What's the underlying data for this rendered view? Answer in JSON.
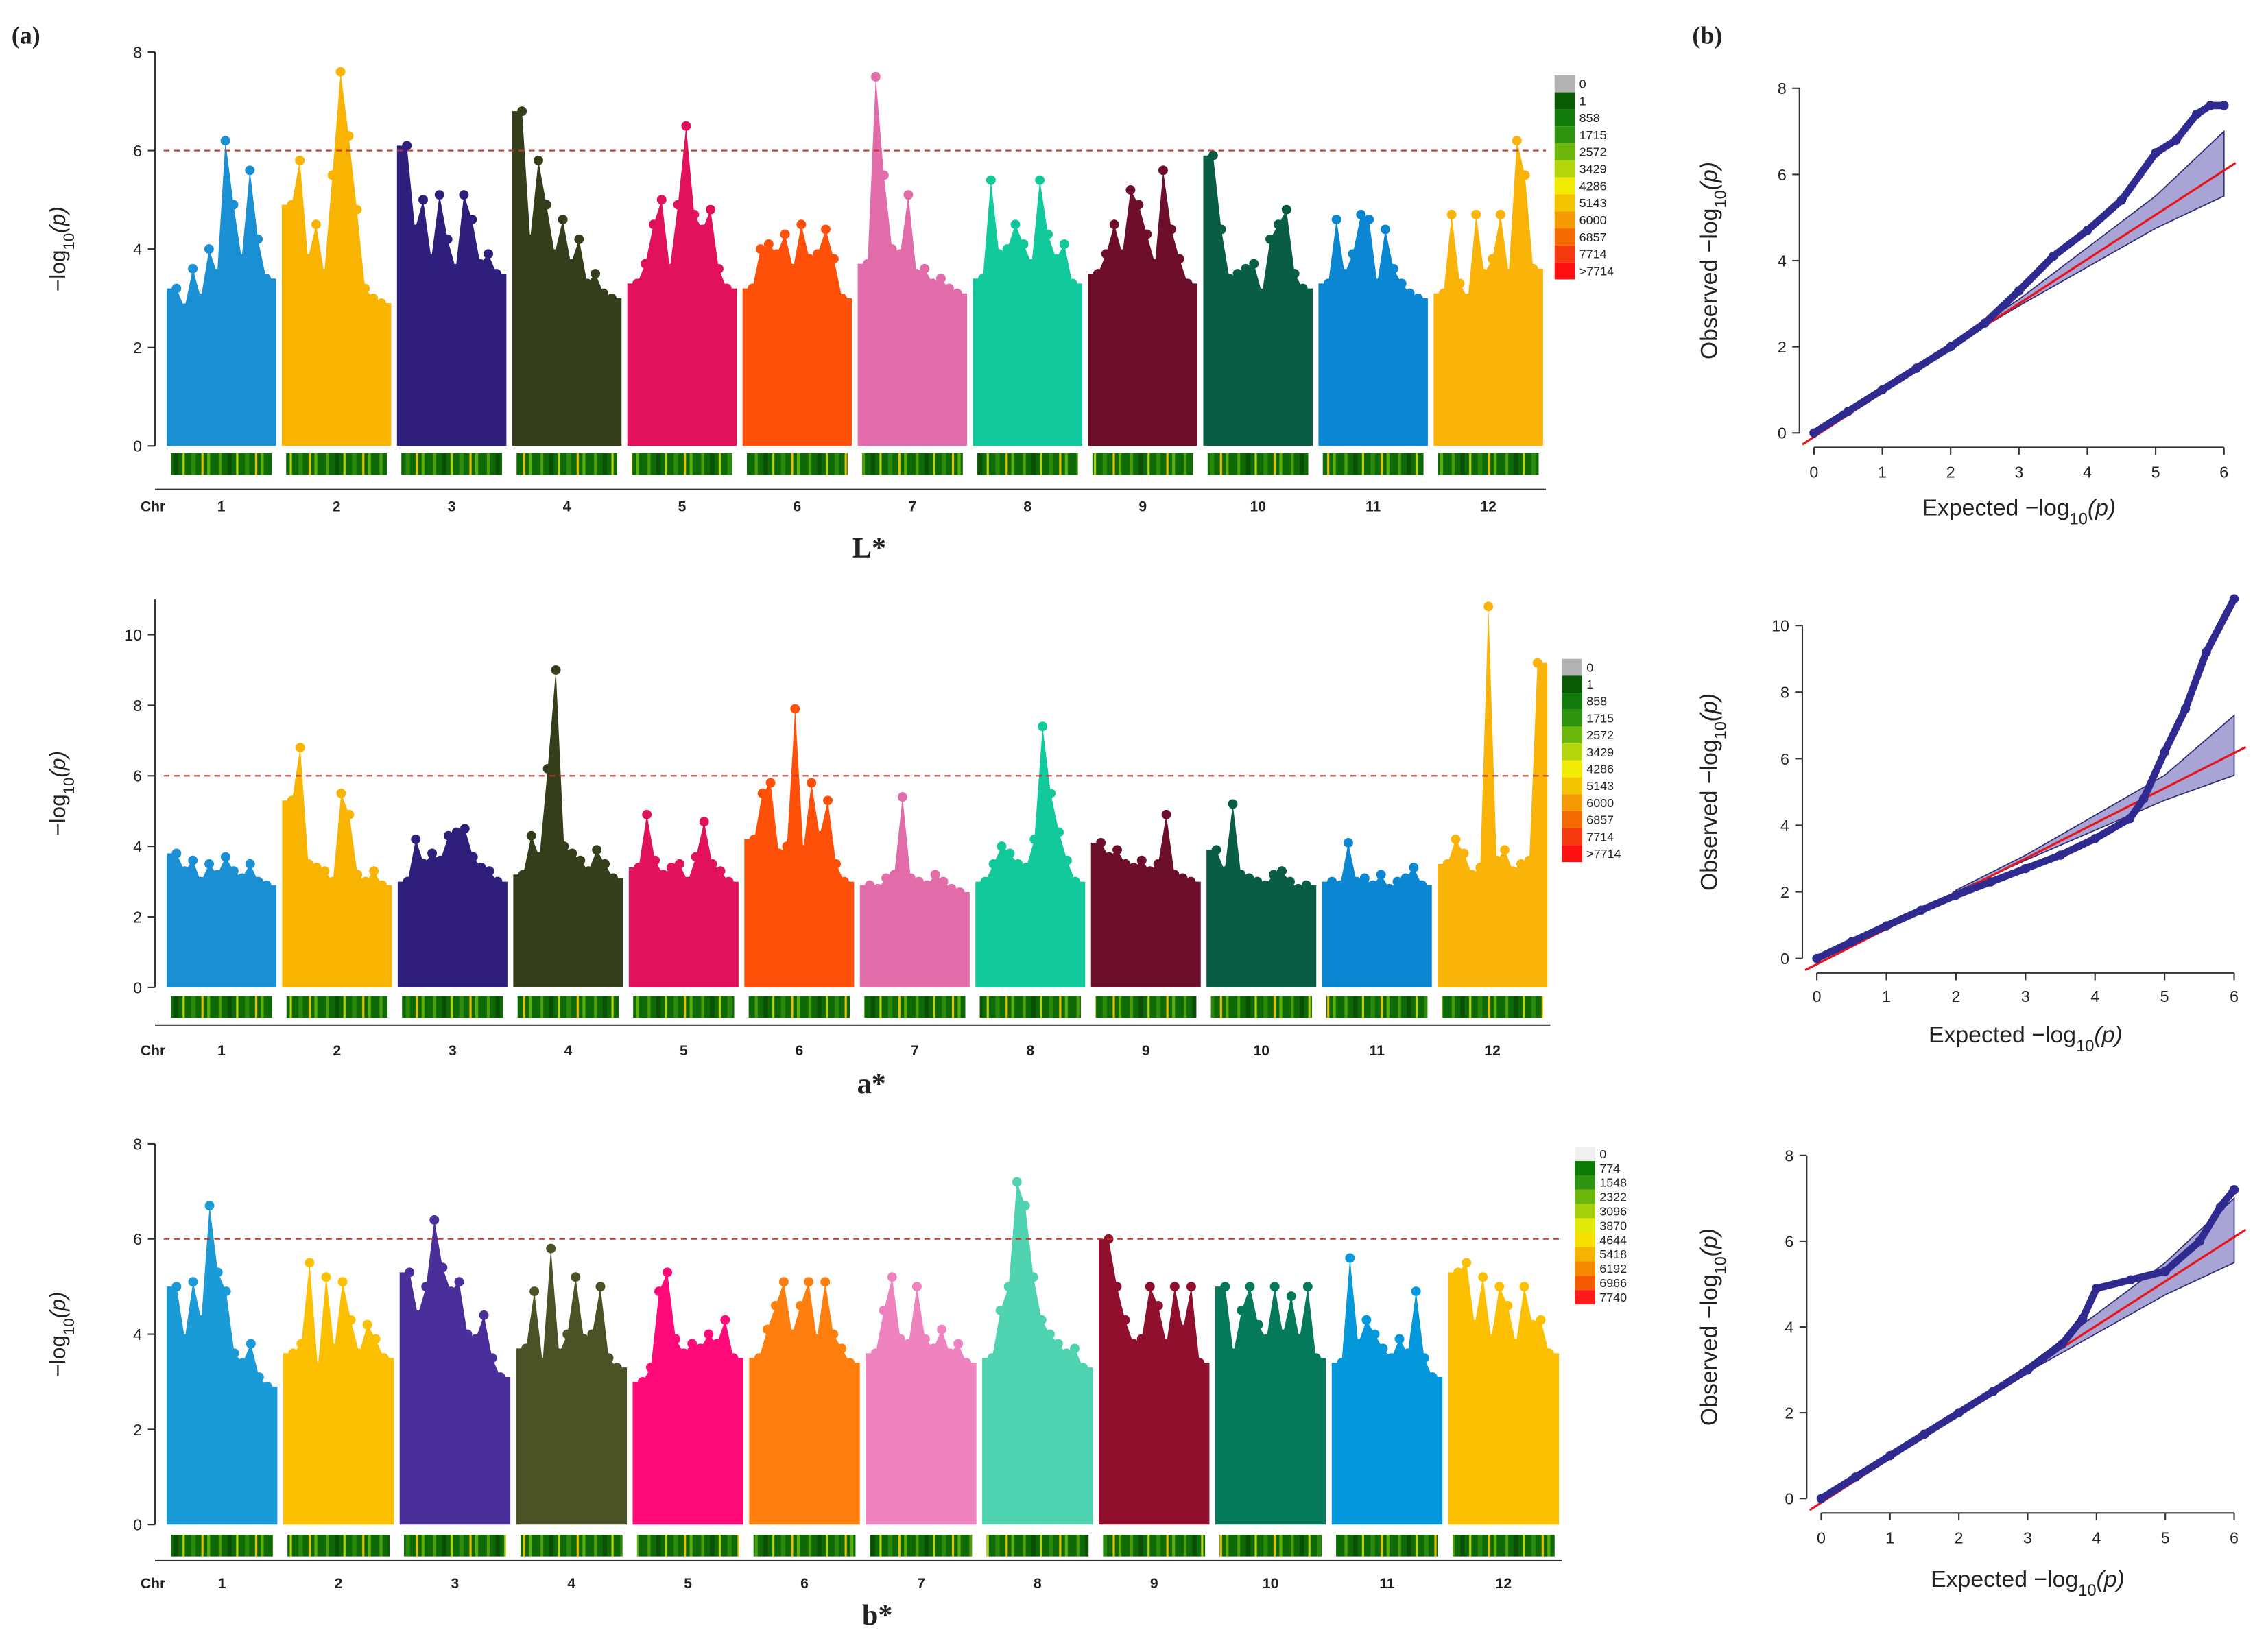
{
  "panel_labels": [
    "(a)",
    "(b)"
  ],
  "chart_data": [
    {
      "type": "manhattan",
      "title": "L*",
      "xlabel": "Chr",
      "ylabel": [
        "−log",
        "10",
        "(p)"
      ],
      "categories": [
        "1",
        "2",
        "3",
        "4",
        "5",
        "6",
        "7",
        "8",
        "9",
        "10",
        "11",
        "12"
      ],
      "ylim": [
        0,
        8
      ],
      "yticks": [
        0,
        2,
        4,
        6,
        8
      ],
      "threshold": 6,
      "threshold_color": "#c0392b",
      "series": [
        {
          "color": "#1a8fd4",
          "values": [
            3.2,
            2.8,
            3.6,
            3.0,
            4.0,
            3.5,
            6.2,
            4.9,
            3.8,
            5.6,
            4.2,
            3.4
          ]
        },
        {
          "color": "#f8b400",
          "values": [
            4.9,
            5.8,
            3.8,
            4.5,
            3.5,
            5.5,
            7.6,
            6.3,
            4.8,
            3.2,
            3.0,
            2.9
          ]
        },
        {
          "color": "#2f1e7c",
          "values": [
            6.1,
            4.4,
            5.0,
            3.8,
            5.1,
            4.2,
            3.6,
            5.1,
            4.6,
            3.7,
            3.9,
            3.5
          ]
        },
        {
          "color": "#343e1b",
          "values": [
            6.8,
            4.2,
            5.8,
            4.9,
            3.9,
            4.6,
            3.7,
            4.2,
            3.3,
            3.5,
            3.1,
            3.0
          ]
        },
        {
          "color": "#e2115b",
          "values": [
            3.3,
            3.7,
            4.5,
            5.0,
            3.6,
            4.9,
            6.5,
            4.7,
            4.4,
            4.8,
            3.6,
            3.2
          ]
        },
        {
          "color": "#fe5008",
          "values": [
            3.2,
            4.0,
            4.1,
            3.9,
            4.3,
            3.6,
            4.5,
            3.8,
            3.9,
            4.4,
            3.8,
            3.0
          ]
        },
        {
          "color": "#e26ba9",
          "values": [
            3.7,
            7.5,
            5.5,
            4.0,
            3.9,
            5.1,
            3.5,
            3.6,
            3.3,
            3.4,
            3.2,
            3.1
          ]
        },
        {
          "color": "#11c99b",
          "values": [
            3.4,
            5.4,
            3.9,
            4.0,
            4.5,
            4.1,
            3.7,
            5.4,
            4.3,
            3.8,
            4.1,
            3.3
          ]
        },
        {
          "color": "#6d0f2b",
          "values": [
            3.5,
            3.9,
            4.5,
            3.9,
            5.2,
            4.9,
            4.3,
            3.7,
            5.6,
            4.4,
            3.8,
            3.3
          ]
        },
        {
          "color": "#0a5d45",
          "values": [
            5.9,
            4.4,
            3.4,
            3.5,
            3.6,
            3.7,
            3.1,
            4.2,
            4.5,
            4.8,
            3.5,
            3.2
          ]
        },
        {
          "color": "#0b86d2",
          "values": [
            3.3,
            4.6,
            3.5,
            3.9,
            4.7,
            4.6,
            3.3,
            4.4,
            3.6,
            3.3,
            3.1,
            3.0
          ]
        },
        {
          "color": "#fab309",
          "values": [
            3.1,
            4.7,
            3.3,
            3.0,
            4.7,
            3.5,
            3.8,
            4.7,
            3.5,
            6.2,
            5.5,
            3.6
          ]
        }
      ],
      "legend": [
        {
          "label": "0",
          "color": "#b3b3b3"
        },
        {
          "label": "1",
          "color": "#0a5a05"
        },
        {
          "label": "858",
          "color": "#137a0c"
        },
        {
          "label": "1715",
          "color": "#2e9410"
        },
        {
          "label": "2572",
          "color": "#6db80c"
        },
        {
          "label": "3429",
          "color": "#b5d60a"
        },
        {
          "label": "4286",
          "color": "#f2ec05"
        },
        {
          "label": "5143",
          "color": "#f5c400"
        },
        {
          "label": "6000",
          "color": "#f59a00"
        },
        {
          "label": "6857",
          "color": "#f56a00"
        },
        {
          "label": "7714",
          "color": "#f53a10"
        },
        {
          "label": ">7714",
          "color": "#ff1010"
        }
      ]
    },
    {
      "type": "manhattan",
      "title": "a*",
      "xlabel": "Chr",
      "ylabel": [
        "−log",
        "10",
        "(p)"
      ],
      "categories": [
        "1",
        "2",
        "3",
        "4",
        "5",
        "6",
        "7",
        "8",
        "9",
        "10",
        "11",
        "12"
      ],
      "ylim": [
        0,
        11
      ],
      "yticks": [
        0,
        2,
        4,
        6,
        8,
        10
      ],
      "threshold": 6,
      "threshold_color": "#c0392b",
      "series": [
        {
          "color": "#1a8fd4",
          "values": [
            3.8,
            3.3,
            3.6,
            3.0,
            3.5,
            3.2,
            3.7,
            3.3,
            3.1,
            3.5,
            3.0,
            2.9
          ]
        },
        {
          "color": "#f8b400",
          "values": [
            5.3,
            6.8,
            3.5,
            3.4,
            3.3,
            3.0,
            5.5,
            4.9,
            3.2,
            3.0,
            3.3,
            2.9
          ]
        },
        {
          "color": "#2f1e7c",
          "values": [
            3.0,
            4.2,
            3.5,
            3.8,
            3.6,
            4.3,
            4.4,
            4.5,
            3.7,
            3.4,
            3.3,
            3.0
          ]
        },
        {
          "color": "#343e1b",
          "values": [
            3.2,
            4.3,
            3.7,
            6.2,
            9.0,
            4.0,
            3.8,
            3.6,
            3.3,
            3.9,
            3.5,
            3.1
          ]
        },
        {
          "color": "#e2115b",
          "values": [
            3.4,
            4.9,
            3.6,
            3.2,
            3.4,
            3.5,
            3.0,
            3.7,
            4.7,
            3.5,
            3.3,
            3.0
          ]
        },
        {
          "color": "#fe5008",
          "values": [
            4.2,
            5.5,
            5.8,
            3.8,
            4.0,
            7.9,
            3.9,
            5.8,
            4.3,
            5.3,
            3.5,
            3.0
          ]
        },
        {
          "color": "#e26ba9",
          "values": [
            2.9,
            2.8,
            3.1,
            3.2,
            5.4,
            3.1,
            3.0,
            2.9,
            3.2,
            3.0,
            2.8,
            2.7
          ]
        },
        {
          "color": "#11c99b",
          "values": [
            3.0,
            3.5,
            4.0,
            3.8,
            3.5,
            3.4,
            4.2,
            7.4,
            5.5,
            4.4,
            3.6,
            3.0
          ]
        },
        {
          "color": "#6d0f2b",
          "values": [
            4.1,
            3.7,
            3.9,
            3.5,
            3.4,
            3.6,
            3.3,
            3.5,
            4.9,
            3.2,
            3.1,
            3.0
          ]
        },
        {
          "color": "#0a5d45",
          "values": [
            3.9,
            3.3,
            5.2,
            3.2,
            3.1,
            3.0,
            2.9,
            3.2,
            3.3,
            3.0,
            2.8,
            2.9
          ]
        },
        {
          "color": "#0b86d2",
          "values": [
            3.0,
            2.9,
            4.1,
            3.0,
            3.1,
            2.9,
            3.2,
            2.8,
            3.0,
            3.1,
            3.4,
            2.9
          ]
        },
        {
          "color": "#fab309",
          "values": [
            3.5,
            4.2,
            3.8,
            3.2,
            3.4,
            10.8,
            3.6,
            3.9,
            3.3,
            3.5,
            3.6,
            9.2
          ]
        }
      ],
      "legend": [
        {
          "label": "0",
          "color": "#b3b3b3"
        },
        {
          "label": "1",
          "color": "#0a5a05"
        },
        {
          "label": "858",
          "color": "#137a0c"
        },
        {
          "label": "1715",
          "color": "#2e9410"
        },
        {
          "label": "2572",
          "color": "#6db80c"
        },
        {
          "label": "3429",
          "color": "#b5d60a"
        },
        {
          "label": "4286",
          "color": "#f2ec05"
        },
        {
          "label": "5143",
          "color": "#f5c400"
        },
        {
          "label": "6000",
          "color": "#f59a00"
        },
        {
          "label": "6857",
          "color": "#f56a00"
        },
        {
          "label": "7714",
          "color": "#f53a10"
        },
        {
          "label": ">7714",
          "color": "#ff1010"
        }
      ]
    },
    {
      "type": "manhattan",
      "title": "b*",
      "xlabel": "Chr",
      "ylabel": [
        "−log",
        "10",
        "(p)"
      ],
      "categories": [
        "1",
        "2",
        "3",
        "4",
        "5",
        "6",
        "7",
        "8",
        "9",
        "10",
        "11",
        "12"
      ],
      "ylim": [
        0,
        8
      ],
      "yticks": [
        0,
        2,
        4,
        6,
        8
      ],
      "threshold": 6,
      "threshold_color": "#c0392b",
      "series": [
        {
          "color": "#1a9ad6",
          "values": [
            5.0,
            3.9,
            5.1,
            4.3,
            6.7,
            5.3,
            4.9,
            3.6,
            3.4,
            3.8,
            3.1,
            2.9
          ]
        },
        {
          "color": "#fcc000",
          "values": [
            3.6,
            3.8,
            5.5,
            3.3,
            5.2,
            3.7,
            5.1,
            4.3,
            3.6,
            4.2,
            3.9,
            3.5
          ]
        },
        {
          "color": "#4a2e99",
          "values": [
            5.3,
            4.4,
            5.0,
            6.4,
            5.4,
            4.9,
            5.1,
            4.0,
            3.9,
            4.4,
            3.5,
            3.1
          ]
        },
        {
          "color": "#4a5226",
          "values": [
            3.7,
            4.9,
            3.4,
            5.8,
            3.6,
            4.0,
            5.2,
            3.9,
            4.0,
            5.0,
            3.5,
            3.3
          ]
        },
        {
          "color": "#ff0a78",
          "values": [
            3.0,
            3.3,
            4.9,
            5.3,
            3.9,
            3.6,
            3.8,
            3.7,
            4.0,
            3.8,
            4.3,
            3.5
          ]
        },
        {
          "color": "#ff7f0e",
          "values": [
            3.5,
            4.1,
            4.6,
            5.1,
            4.0,
            4.6,
            5.1,
            3.9,
            5.1,
            4.0,
            3.7,
            3.4
          ]
        },
        {
          "color": "#ef83bf",
          "values": [
            3.6,
            4.5,
            5.2,
            3.9,
            3.8,
            5.0,
            3.9,
            3.7,
            4.1,
            3.6,
            3.8,
            3.4
          ]
        },
        {
          "color": "#4fd3b0",
          "values": [
            3.5,
            4.5,
            5.0,
            7.2,
            6.7,
            5.2,
            4.3,
            4.0,
            3.8,
            3.6,
            3.7,
            3.3
          ]
        },
        {
          "color": "#8f0f2d",
          "values": [
            6.0,
            5.0,
            4.3,
            3.8,
            3.9,
            5.0,
            4.6,
            3.8,
            5.0,
            4.1,
            5.0,
            3.4
          ]
        },
        {
          "color": "#047a5a",
          "values": [
            5.0,
            3.6,
            4.5,
            5.0,
            4.2,
            3.9,
            5.0,
            4.0,
            4.8,
            3.9,
            5.0,
            3.5
          ]
        },
        {
          "color": "#0398dc",
          "values": [
            3.4,
            5.6,
            3.8,
            4.3,
            4.0,
            3.7,
            3.5,
            3.9,
            3.6,
            4.9,
            3.5,
            3.1
          ]
        },
        {
          "color": "#fcc000",
          "values": [
            5.3,
            5.5,
            4.2,
            5.2,
            3.9,
            5.0,
            4.6,
            3.8,
            5.0,
            4.2,
            4.3,
            3.6
          ]
        }
      ],
      "legend": [
        {
          "label": "0",
          "color": "#f0f0f0"
        },
        {
          "label": "774",
          "color": "#0a7a05"
        },
        {
          "label": "1548",
          "color": "#2e9410"
        },
        {
          "label": "2322",
          "color": "#6db80c"
        },
        {
          "label": "3096",
          "color": "#a6d00a"
        },
        {
          "label": "3870",
          "color": "#e0e805"
        },
        {
          "label": "4644",
          "color": "#f5e000"
        },
        {
          "label": "5418",
          "color": "#f5b400"
        },
        {
          "label": "6192",
          "color": "#f58a00"
        },
        {
          "label": "6966",
          "color": "#f55a00"
        },
        {
          "label": "7740",
          "color": "#ff1a1a"
        }
      ]
    },
    {
      "type": "qq",
      "xlabel": [
        "Expected  −log",
        "10",
        "(p)"
      ],
      "ylabel": [
        "Observed  −log",
        "10",
        "(p)"
      ],
      "xlim": [
        0,
        6
      ],
      "xticks": [
        0,
        1,
        2,
        3,
        4,
        5,
        6
      ],
      "ylim": [
        0,
        8
      ],
      "yticks": [
        0,
        2,
        4,
        6,
        8
      ],
      "color": "#2e2a90",
      "line_color": "#e8141b",
      "band_color": "#8c85c8",
      "x": [
        0,
        0.5,
        1,
        1.5,
        2,
        2.5,
        3,
        3.5,
        4,
        4.5,
        5,
        5.3,
        5.6,
        5.8,
        6.0
      ],
      "values": [
        0,
        0.5,
        1,
        1.5,
        2,
        2.55,
        3.3,
        4.1,
        4.7,
        5.4,
        6.5,
        6.8,
        7.4,
        7.6,
        7.6
      ],
      "band_x": [
        2,
        3,
        4,
        5,
        6
      ],
      "band_upper": [
        2.05,
        3.1,
        4.3,
        5.5,
        7.0
      ],
      "band_lower": [
        2,
        2.95,
        3.85,
        4.75,
        5.5
      ]
    },
    {
      "type": "qq",
      "xlabel": [
        "Expected  −log",
        "10",
        "(p)"
      ],
      "ylabel": [
        "Observed  −log",
        "10",
        "(p)"
      ],
      "xlim": [
        0,
        6
      ],
      "xticks": [
        0,
        1,
        2,
        3,
        4,
        5,
        6
      ],
      "ylim": [
        0,
        10
      ],
      "yticks": [
        0,
        2,
        4,
        6,
        8,
        10
      ],
      "color": "#2e2a90",
      "line_color": "#e8141b",
      "band_color": "#8c85c8",
      "x": [
        0,
        0.5,
        1,
        1.5,
        2,
        2.5,
        3,
        3.5,
        4,
        4.5,
        4.7,
        5,
        5.3,
        5.6,
        6.0
      ],
      "values": [
        0,
        0.5,
        0.98,
        1.45,
        1.9,
        2.3,
        2.7,
        3.1,
        3.6,
        4.2,
        4.8,
        6.2,
        7.5,
        9.2,
        10.8
      ],
      "band_x": [
        2,
        3,
        4,
        5,
        6
      ],
      "band_upper": [
        2.05,
        3.1,
        4.3,
        5.5,
        7.3
      ],
      "band_lower": [
        2,
        2.95,
        3.85,
        4.75,
        5.5
      ]
    },
    {
      "type": "qq",
      "xlabel": [
        "Expected  −log",
        "10",
        "(p)"
      ],
      "ylabel": [
        "Observed  −log",
        "10",
        "(p)"
      ],
      "xlim": [
        0,
        6
      ],
      "xticks": [
        0,
        1,
        2,
        3,
        4,
        5,
        6
      ],
      "ylim": [
        0,
        8
      ],
      "yticks": [
        0,
        2,
        4,
        6,
        8
      ],
      "color": "#2e2a90",
      "line_color": "#e8141b",
      "band_color": "#8c85c8",
      "x": [
        0,
        0.5,
        1,
        1.5,
        2,
        2.5,
        3,
        3.5,
        3.8,
        4,
        4.5,
        5,
        5.5,
        5.8,
        6.0
      ],
      "values": [
        0,
        0.5,
        1,
        1.5,
        2,
        2.5,
        3.0,
        3.6,
        4.2,
        4.9,
        5.1,
        5.3,
        6.0,
        6.8,
        7.2
      ],
      "band_x": [
        2,
        3,
        4,
        5,
        6
      ],
      "band_upper": [
        2.05,
        3.1,
        4.3,
        5.5,
        7.0
      ],
      "band_lower": [
        2,
        2.95,
        3.85,
        4.75,
        5.5
      ]
    }
  ]
}
